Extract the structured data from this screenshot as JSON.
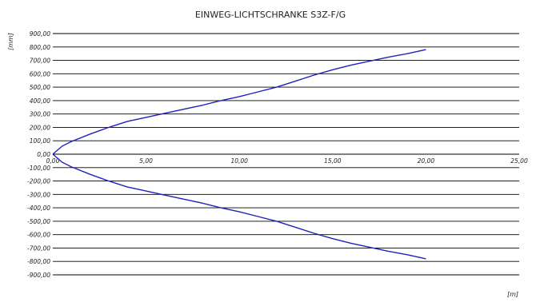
{
  "chart_data": {
    "type": "line",
    "title": "EINWEG-LICHTSCHRANKE S3Z-F/G",
    "xlabel": "[m]",
    "ylabel": "[mm]",
    "xlim": [
      0,
      25
    ],
    "ylim": [
      -900,
      900
    ],
    "grid": true,
    "x_ticks": [
      "0,00",
      "5,00",
      "10,00",
      "15,00",
      "20,00",
      "25,00"
    ],
    "y_ticks": [
      "900,00",
      "800,00",
      "700,00",
      "600,00",
      "500,00",
      "400,00",
      "300,00",
      "200,00",
      "100,00",
      "0,00",
      "-100,00",
      "-200,00",
      "-300,00",
      "-400,00",
      "-500,00",
      "-600,00",
      "-700,00",
      "-800,00",
      "-900,00"
    ],
    "color": "#2020c0",
    "series": [
      {
        "x": [
          0,
          0.5,
          1,
          2,
          3,
          4,
          5,
          6,
          7,
          8,
          9,
          10,
          11,
          12,
          13,
          14,
          15,
          16,
          17,
          18,
          19,
          20
        ],
        "y": [
          0,
          60,
          95,
          150,
          200,
          245,
          275,
          305,
          335,
          365,
          400,
          430,
          465,
          500,
          545,
          590,
          630,
          665,
          695,
          725,
          750,
          780
        ]
      },
      {
        "x": [
          0,
          0.5,
          1,
          2,
          3,
          4,
          5,
          6,
          7,
          8,
          9,
          10,
          11,
          12,
          13,
          14,
          15,
          16,
          17,
          18,
          19,
          20
        ],
        "y": [
          0,
          -60,
          -95,
          -150,
          -200,
          -245,
          -275,
          -305,
          -335,
          -365,
          -400,
          -430,
          -465,
          -500,
          -545,
          -590,
          -630,
          -665,
          -695,
          -725,
          -750,
          -780
        ]
      }
    ]
  }
}
